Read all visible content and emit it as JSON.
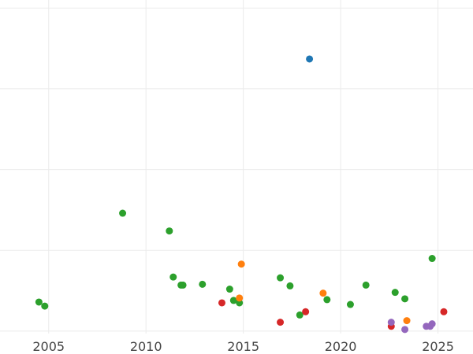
{
  "chart_data": {
    "type": "scatter",
    "title": "",
    "xlabel": "",
    "ylabel": "",
    "xlim": [
      2002.5,
      2026.8
    ],
    "ylim": [
      -3,
      410
    ],
    "grid": true,
    "x_ticks": [
      2005,
      2010,
      2015,
      2020,
      2025
    ],
    "x_tick_labels": [
      "2005",
      "2010",
      "2015",
      "2020",
      "2025"
    ],
    "y_grid_values": [
      0,
      100,
      200,
      300,
      400
    ],
    "points": [
      {
        "x": 2018.4,
        "y": 337,
        "color": "#1f77b4"
      },
      {
        "x": 2004.5,
        "y": 36,
        "color": "#2ca02c"
      },
      {
        "x": 2004.8,
        "y": 31,
        "color": "#2ca02c"
      },
      {
        "x": 2008.8,
        "y": 146,
        "color": "#2ca02c"
      },
      {
        "x": 2011.2,
        "y": 124,
        "color": "#2ca02c"
      },
      {
        "x": 2011.4,
        "y": 67,
        "color": "#2ca02c"
      },
      {
        "x": 2011.8,
        "y": 57,
        "color": "#2ca02c"
      },
      {
        "x": 2011.9,
        "y": 57,
        "color": "#2ca02c"
      },
      {
        "x": 2012.9,
        "y": 58,
        "color": "#2ca02c"
      },
      {
        "x": 2014.3,
        "y": 52,
        "color": "#2ca02c"
      },
      {
        "x": 2014.5,
        "y": 38,
        "color": "#2ca02c"
      },
      {
        "x": 2014.8,
        "y": 35,
        "color": "#2ca02c"
      },
      {
        "x": 2016.9,
        "y": 66,
        "color": "#2ca02c"
      },
      {
        "x": 2017.4,
        "y": 56,
        "color": "#2ca02c"
      },
      {
        "x": 2017.9,
        "y": 20,
        "color": "#2ca02c"
      },
      {
        "x": 2019.3,
        "y": 39,
        "color": "#2ca02c"
      },
      {
        "x": 2020.5,
        "y": 33,
        "color": "#2ca02c"
      },
      {
        "x": 2021.3,
        "y": 57,
        "color": "#2ca02c"
      },
      {
        "x": 2022.8,
        "y": 48,
        "color": "#2ca02c"
      },
      {
        "x": 2023.3,
        "y": 40,
        "color": "#2ca02c"
      },
      {
        "x": 2024.7,
        "y": 90,
        "color": "#2ca02c"
      },
      {
        "x": 2014.9,
        "y": 83,
        "color": "#ff7f0e"
      },
      {
        "x": 2014.8,
        "y": 41,
        "color": "#ff7f0e"
      },
      {
        "x": 2019.1,
        "y": 47,
        "color": "#ff7f0e"
      },
      {
        "x": 2023.4,
        "y": 13,
        "color": "#ff7f0e"
      },
      {
        "x": 2013.9,
        "y": 35,
        "color": "#d62728"
      },
      {
        "x": 2016.9,
        "y": 11,
        "color": "#d62728"
      },
      {
        "x": 2018.2,
        "y": 24,
        "color": "#d62728"
      },
      {
        "x": 2022.6,
        "y": 6,
        "color": "#d62728"
      },
      {
        "x": 2025.3,
        "y": 24,
        "color": "#d62728"
      },
      {
        "x": 2022.6,
        "y": 11,
        "color": "#9467bd"
      },
      {
        "x": 2023.3,
        "y": 2,
        "color": "#9467bd"
      },
      {
        "x": 2024.4,
        "y": 6,
        "color": "#9467bd"
      },
      {
        "x": 2024.6,
        "y": 6,
        "color": "#9467bd"
      },
      {
        "x": 2024.7,
        "y": 9,
        "color": "#9467bd"
      }
    ]
  }
}
